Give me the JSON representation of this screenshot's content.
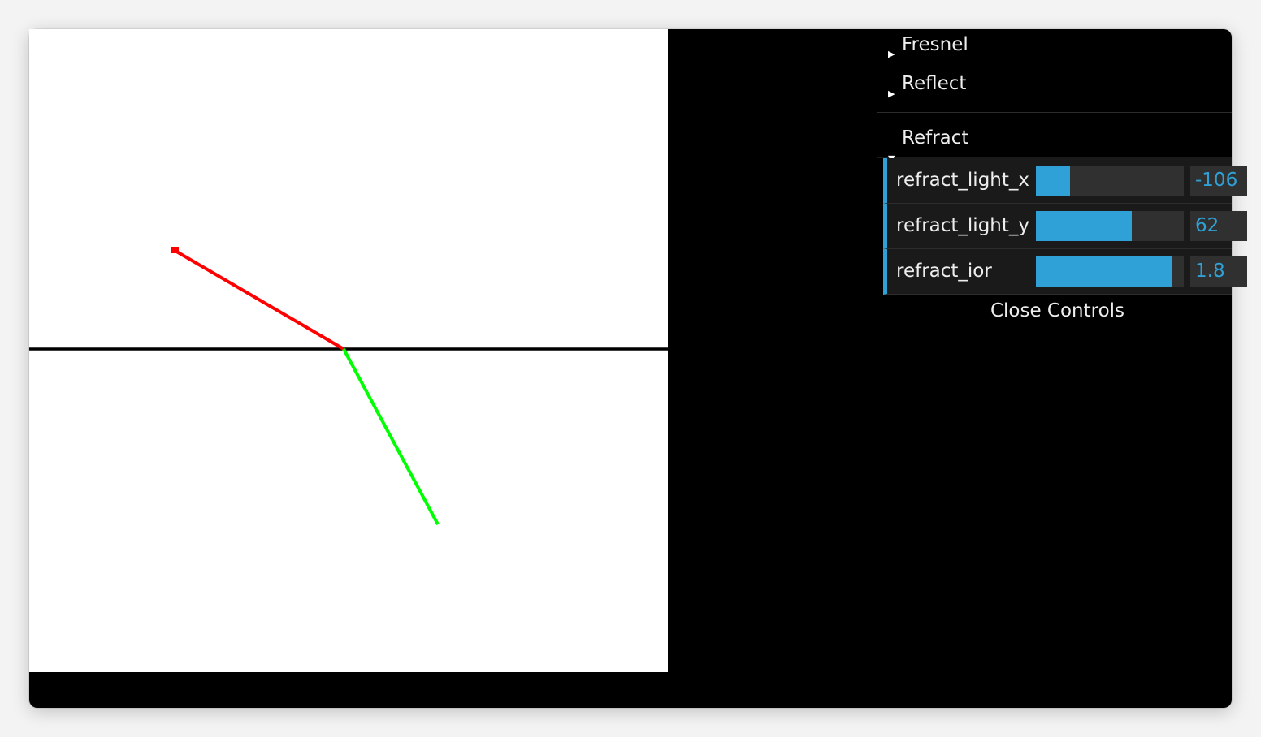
{
  "gui": {
    "folders": [
      {
        "label": "Fresnel",
        "open": false
      },
      {
        "label": "Reflect",
        "open": false
      },
      {
        "label": "Refract",
        "open": true
      }
    ],
    "controls": [
      {
        "name": "refract_light_x",
        "value": "-106",
        "fill": 0.23
      },
      {
        "name": "refract_light_y",
        "value": "62",
        "fill": 0.65
      },
      {
        "name": "refract_ior",
        "value": "1.8",
        "fill": 0.92
      }
    ],
    "close_label": "Close Controls",
    "accent_color": "#2fa1d6"
  },
  "scene": {
    "surface_color": "#000000",
    "incident_ray_color": "#ff0000",
    "refracted_ray_color": "#00ff00",
    "background_color": "#ffffff"
  }
}
